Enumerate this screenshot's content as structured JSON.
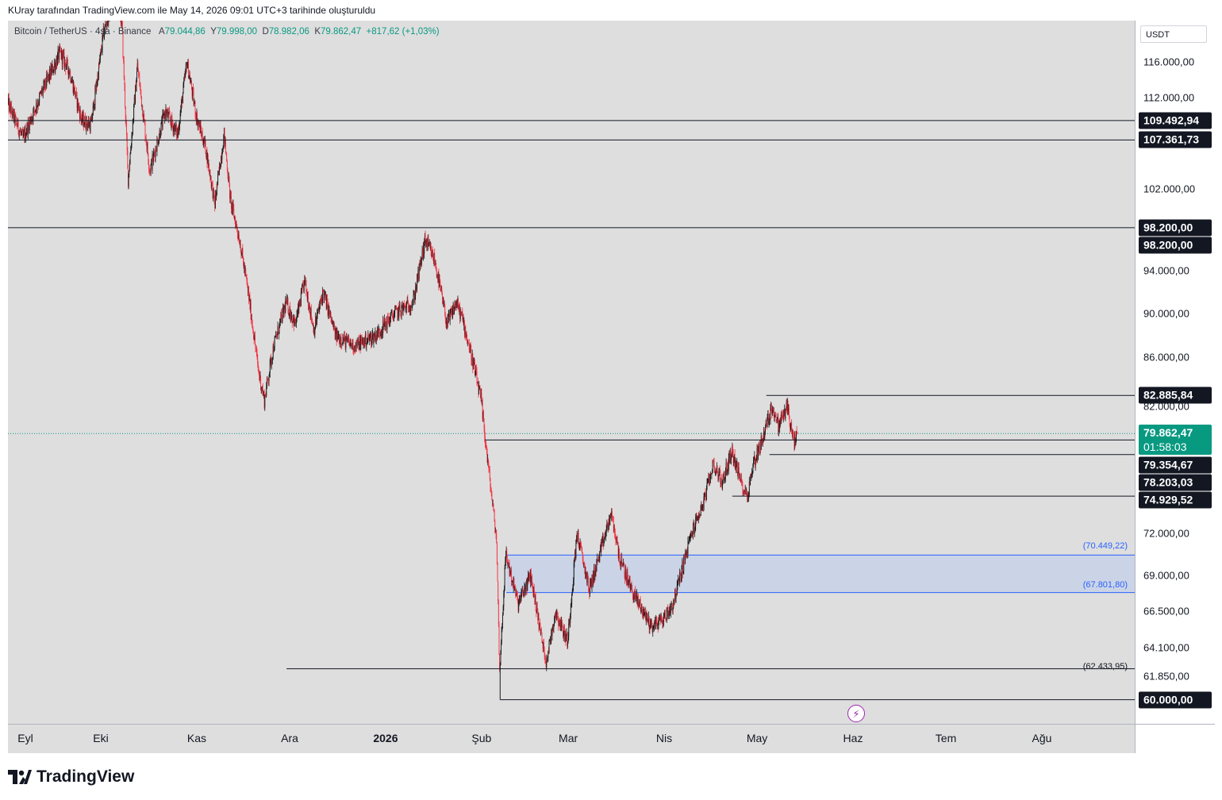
{
  "attribution": "KUray tarafından TradingView.com ile May 14, 2026 09:01 UTC+3 tarihinde oluşturuldu",
  "legend": {
    "symbol": "Bitcoin / TetherUS · 4sa · Binance",
    "open_label": "A",
    "open": "79.044,86",
    "high_label": "Y",
    "high": "79.998,00",
    "low_label": "D",
    "low": "78.982,06",
    "close_label": "K",
    "close": "79.862,47",
    "change": "+817,62 (+1,03%)"
  },
  "currency_button": "USDT",
  "footer_brand": "TradingView",
  "price_ticks": [
    "116.000,00",
    "112.000,00",
    "102.000,00",
    "94.000,00",
    "90.000,00",
    "86.000,00",
    "82.000,00",
    "72.000,00",
    "69.000,00",
    "66.500,00",
    "64.100,00",
    "61.850,00"
  ],
  "price_labels": [
    "109.492,94",
    "107.361,73",
    "98.200,00",
    "98.200,00",
    "82.885,84",
    "79.354,67",
    "78.203,03",
    "74.929,52",
    "60.000,00"
  ],
  "current_price": {
    "price": "79.862,47",
    "countdown": "01:58:03"
  },
  "time_ticks": [
    "Eyl",
    "Eki",
    "Kas",
    "Ara",
    "2026",
    "Şub",
    "Mar",
    "Nis",
    "May",
    "Haz",
    "Tem",
    "Ağu"
  ],
  "zone_labels": {
    "upper": "(70.449,22)",
    "lower": "(67.801,80)",
    "low": "(62.433,95)"
  },
  "colors": {
    "up": "#089981",
    "down": "#f23645",
    "candle_body": "#1a1a1a",
    "zone_fill": "#c8d2e8",
    "zone_border": "#2962ff",
    "background": "#dedede"
  },
  "icons": {
    "bolt": "bolt-icon",
    "logo": "tradingview-logo-icon"
  },
  "chart_data": {
    "type": "candlestick",
    "interval": "4sa",
    "symbol": "BTCUSDT",
    "x_range": [
      "2025-09-01",
      "2026-08-31"
    ],
    "y_range": [
      59000,
      119000
    ],
    "price_scale": [
      [
        116000,
        52
      ],
      [
        112000,
        97
      ],
      [
        102000,
        212
      ],
      [
        94000,
        315
      ],
      [
        90000,
        369
      ],
      [
        86000,
        424
      ],
      [
        82000,
        486
      ],
      [
        72000,
        646
      ],
      [
        69000,
        699
      ],
      [
        66500,
        744
      ],
      [
        64100,
        790
      ],
      [
        61850,
        826
      ]
    ],
    "path": [
      [
        "2025-09-01",
        111500
      ],
      [
        "2025-09-06",
        107500
      ],
      [
        "2025-09-12",
        112500
      ],
      [
        "2025-09-18",
        117000
      ],
      [
        "2025-09-21",
        115000
      ],
      [
        "2025-09-25",
        109500
      ],
      [
        "2025-09-28",
        109000
      ],
      [
        "2025-10-02",
        119000
      ],
      [
        "2025-10-06",
        125000
      ],
      [
        "2025-10-08",
        120000
      ],
      [
        "2025-10-10",
        103000
      ],
      [
        "2025-10-13",
        115500
      ],
      [
        "2025-10-17",
        104000
      ],
      [
        "2025-10-22",
        110500
      ],
      [
        "2025-10-26",
        108000
      ],
      [
        "2025-10-29",
        116000
      ],
      [
        "2025-11-01",
        110000
      ],
      [
        "2025-11-04",
        106500
      ],
      [
        "2025-11-07",
        100500
      ],
      [
        "2025-11-10",
        108000
      ],
      [
        "2025-11-12",
        101000
      ],
      [
        "2025-11-15",
        97000
      ],
      [
        "2025-11-18",
        91500
      ],
      [
        "2025-11-21",
        85000
      ],
      [
        "2025-11-23",
        82500
      ],
      [
        "2025-11-26",
        87000
      ],
      [
        "2025-11-30",
        91000
      ],
      [
        "2025-12-03",
        89000
      ],
      [
        "2025-12-06",
        93000
      ],
      [
        "2025-12-09",
        88500
      ],
      [
        "2025-12-12",
        92000
      ],
      [
        "2025-12-16",
        88000
      ],
      [
        "2025-12-22",
        87000
      ],
      [
        "2025-12-29",
        88000
      ],
      [
        "2026-01-04",
        90000
      ],
      [
        "2026-01-10",
        91000
      ],
      [
        "2026-01-14",
        97000
      ],
      [
        "2026-01-17",
        95000
      ],
      [
        "2026-01-19",
        92000
      ],
      [
        "2026-01-21",
        89000
      ],
      [
        "2026-01-24",
        91000
      ],
      [
        "2026-01-26",
        89500
      ],
      [
        "2026-01-29",
        86000
      ],
      [
        "2026-02-01",
        82500
      ],
      [
        "2026-02-03",
        78000
      ],
      [
        "2026-02-06",
        71500
      ],
      [
        "2026-02-07",
        62433.95
      ],
      [
        "2026-02-09",
        70500
      ],
      [
        "2026-02-13",
        67000
      ],
      [
        "2026-02-17",
        69000
      ],
      [
        "2026-02-22",
        63000
      ],
      [
        "2026-02-25",
        66500
      ],
      [
        "2026-03-01",
        64500
      ],
      [
        "2026-03-04",
        72000
      ],
      [
        "2026-03-08",
        68000
      ],
      [
        "2026-03-12",
        71000
      ],
      [
        "2026-03-15",
        73500
      ],
      [
        "2026-03-18",
        70000
      ],
      [
        "2026-03-22",
        67800
      ],
      [
        "2026-03-28",
        65500
      ],
      [
        "2026-04-01",
        66000
      ],
      [
        "2026-04-04",
        67000
      ],
      [
        "2026-04-07",
        69500
      ],
      [
        "2026-04-10",
        72000
      ],
      [
        "2026-04-14",
        74500
      ],
      [
        "2026-04-17",
        77500
      ],
      [
        "2026-04-20",
        76000
      ],
      [
        "2026-04-23",
        78500
      ],
      [
        "2026-04-26",
        76000
      ],
      [
        "2026-04-28",
        74929.52
      ],
      [
        "2026-04-30",
        77500
      ],
      [
        "2026-05-03",
        79500
      ],
      [
        "2026-05-06",
        82000
      ],
      [
        "2026-05-08",
        80500
      ],
      [
        "2026-05-11",
        82000
      ],
      [
        "2026-05-13",
        79000
      ],
      [
        "2026-05-14",
        79862.47
      ]
    ],
    "horizontal_lines": [
      {
        "price": 109492.94,
        "from": "2025-09-01",
        "to": "2026-08-31"
      },
      {
        "price": 107361.73,
        "from": "2025-09-01",
        "to": "2026-08-31"
      },
      {
        "price": 98200.0,
        "from": "2025-09-01",
        "to": "2026-08-31"
      },
      {
        "price": 82885.84,
        "from": "2026-05-04",
        "to": "2026-08-31"
      },
      {
        "price": 79354.67,
        "from": "2026-02-02",
        "to": "2026-08-31"
      },
      {
        "price": 78203.03,
        "from": "2026-05-05",
        "to": "2026-08-31"
      },
      {
        "price": 74929.52,
        "from": "2026-04-23",
        "to": "2026-08-31"
      },
      {
        "price": 62433.95,
        "from": "2025-11-30",
        "to": "2026-08-31"
      },
      {
        "price": 60000.0,
        "from": "2026-02-07",
        "to": "2026-08-31"
      }
    ],
    "current_price_line": 79862.47,
    "zone": {
      "upper": 70449.22,
      "lower": 67801.8,
      "from": "2026-02-09",
      "to": "2026-08-31"
    }
  }
}
